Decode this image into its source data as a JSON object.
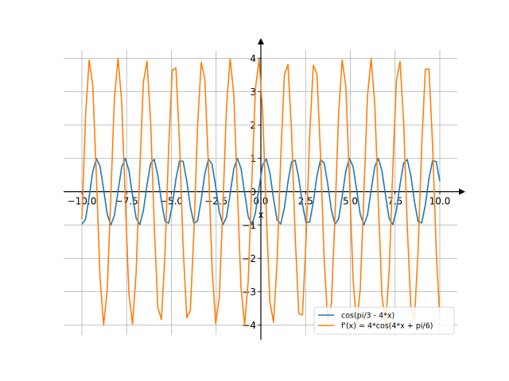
{
  "chart_data": {
    "type": "line",
    "xlabel": "x",
    "ylabel": "",
    "xlim": [
      -10.0,
      10.0
    ],
    "ylim": [
      -4.0,
      4.0
    ],
    "grid": true,
    "legend_position": "lower right",
    "x_ticks": [
      -10.0,
      -7.5,
      -5.0,
      -2.5,
      0.0,
      2.5,
      5.0,
      7.5,
      10.0
    ],
    "x_tick_labels": [
      "−10.0",
      "−7.5",
      "−5.0",
      "−2.5",
      "0.0",
      "2.5",
      "5.0",
      "7.5",
      "10.0"
    ],
    "y_ticks": [
      -4,
      -3,
      -2,
      -1,
      0,
      1,
      2,
      3,
      4
    ],
    "y_tick_labels": [
      "−4",
      "−3",
      "−2",
      "−1",
      "0",
      "1",
      "2",
      "3",
      "4"
    ],
    "x_range": {
      "start": -10.0,
      "end": 10.0,
      "samples": 100
    },
    "series": [
      {
        "name": "cos(pi/3 - 4*x)",
        "formula": "cos(pi/3 - 4*x)",
        "color": "#1f77b4"
      },
      {
        "name": "f'(x) = 4*cos(4*x + pi/6)",
        "formula": "4*cos(4*x + pi/6)",
        "color": "#ff7f0e"
      }
    ]
  }
}
